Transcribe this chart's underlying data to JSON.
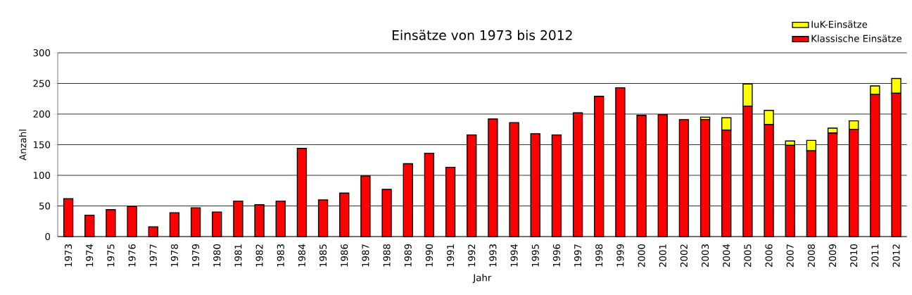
{
  "chart_data": {
    "type": "bar",
    "stacked": true,
    "title": "Einsätze von 1973 bis 2012",
    "xlabel": "Jahr",
    "ylabel": "Anzahl",
    "categories": [
      "1973",
      "1974",
      "1975",
      "1976",
      "1977",
      "1978",
      "1979",
      "1980",
      "1981",
      "1982",
      "1983",
      "1984",
      "1985",
      "1986",
      "1987",
      "1988",
      "1989",
      "1990",
      "1991",
      "1992",
      "1993",
      "1994",
      "1995",
      "1996",
      "1997",
      "1998",
      "1999",
      "2000",
      "2001",
      "2002",
      "2003",
      "2004",
      "2005",
      "2006",
      "2007",
      "2008",
      "2009",
      "2010",
      "2011",
      "2012"
    ],
    "series": [
      {
        "name": "Klassische Einsätze",
        "color": "#ff0000",
        "values": [
          62,
          35,
          44,
          49,
          16,
          39,
          47,
          40,
          58,
          52,
          58,
          144,
          60,
          71,
          99,
          77,
          119,
          136,
          113,
          166,
          192,
          186,
          168,
          166,
          202,
          229,
          243,
          198,
          199,
          191,
          191,
          174,
          213,
          183,
          149,
          140,
          169,
          175,
          232,
          234
        ]
      },
      {
        "name": "IuK-Einsätze",
        "color": "#ffff00",
        "values": [
          null,
          null,
          null,
          null,
          null,
          null,
          null,
          null,
          null,
          null,
          null,
          null,
          null,
          null,
          null,
          null,
          null,
          null,
          null,
          null,
          null,
          null,
          null,
          null,
          null,
          null,
          null,
          null,
          null,
          null,
          4,
          20,
          36,
          23,
          7,
          17,
          8,
          14,
          14,
          24
        ]
      }
    ],
    "ylim": [
      0,
      300
    ],
    "yticks": [
      0,
      50,
      100,
      150,
      200,
      250,
      300
    ],
    "grid": "y",
    "legend": "top right"
  }
}
